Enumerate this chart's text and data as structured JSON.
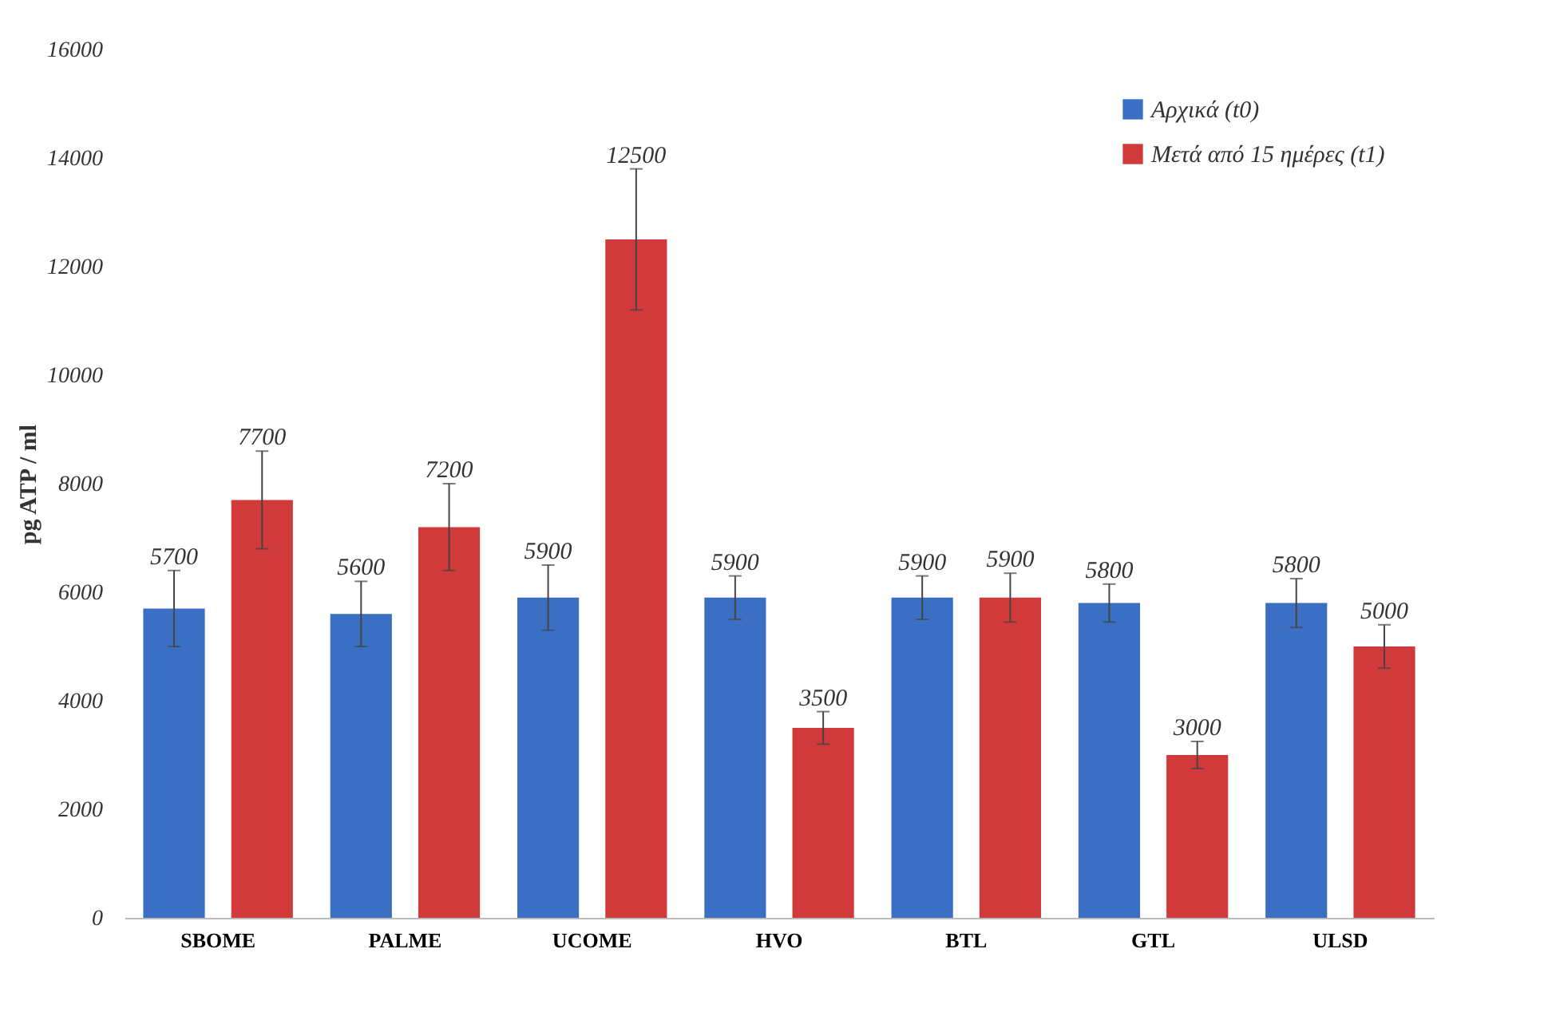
{
  "chart_data": {
    "type": "bar",
    "ylabel": "pg ATP / ml",
    "categories": [
      "SBOME",
      "PALME",
      "UCOME",
      "HVO",
      "BTL",
      "GTL",
      "ULSD"
    ],
    "series": [
      {
        "name": "Αρχικά (t0)",
        "color": "#3a6fc4",
        "values": [
          5700,
          5600,
          5900,
          5900,
          5900,
          5800,
          5800
        ],
        "errors": [
          700,
          600,
          600,
          400,
          400,
          350,
          450
        ]
      },
      {
        "name": "Μετά από 15 ημέρες (t1)",
        "color": "#d03a3a",
        "values": [
          7700,
          7200,
          12500,
          3500,
          5900,
          3000,
          5000
        ],
        "errors": [
          900,
          800,
          1300,
          300,
          450,
          250,
          400
        ]
      }
    ],
    "ylim": [
      0,
      16000
    ],
    "yticks": [
      0,
      2000,
      4000,
      6000,
      8000,
      10000,
      12000,
      14000,
      16000
    ],
    "grid": false,
    "legend": "top right",
    "data_labels": true
  }
}
